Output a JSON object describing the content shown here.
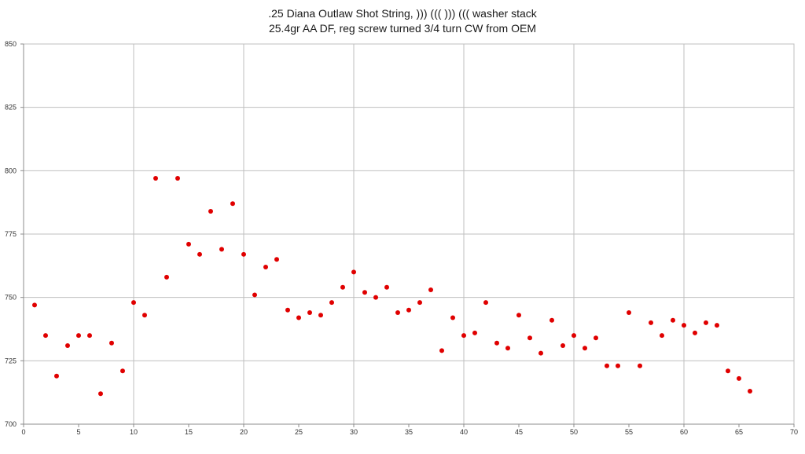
{
  "chart_data": {
    "type": "scatter",
    "title": ".25 Diana Outlaw Shot String, ))) ((( ))) ((( washer stack",
    "subtitle": "25.4gr AA DF, reg screw turned 3/4 turn CW from OEM",
    "xlabel": "",
    "ylabel": "",
    "xlim": [
      0,
      70
    ],
    "ylim": [
      700,
      850
    ],
    "x_ticks": [
      0,
      5,
      10,
      15,
      20,
      25,
      30,
      35,
      40,
      45,
      50,
      55,
      60,
      65,
      70
    ],
    "y_ticks": [
      700,
      725,
      750,
      775,
      800,
      825,
      850
    ],
    "grid": true,
    "legend": "none",
    "marker_color": "#e00000",
    "points": [
      [
        1,
        747
      ],
      [
        2,
        735
      ],
      [
        3,
        719
      ],
      [
        4,
        731
      ],
      [
        5,
        735
      ],
      [
        6,
        735
      ],
      [
        7,
        712
      ],
      [
        8,
        732
      ],
      [
        9,
        721
      ],
      [
        10,
        748
      ],
      [
        11,
        743
      ],
      [
        12,
        797
      ],
      [
        13,
        758
      ],
      [
        14,
        797
      ],
      [
        15,
        771
      ],
      [
        16,
        767
      ],
      [
        17,
        784
      ],
      [
        18,
        769
      ],
      [
        19,
        787
      ],
      [
        20,
        767
      ],
      [
        21,
        751
      ],
      [
        22,
        762
      ],
      [
        23,
        765
      ],
      [
        24,
        745
      ],
      [
        25,
        742
      ],
      [
        26,
        744
      ],
      [
        27,
        743
      ],
      [
        28,
        748
      ],
      [
        29,
        754
      ],
      [
        30,
        760
      ],
      [
        31,
        752
      ],
      [
        32,
        750
      ],
      [
        33,
        754
      ],
      [
        34,
        744
      ],
      [
        35,
        745
      ],
      [
        36,
        748
      ],
      [
        37,
        753
      ],
      [
        38,
        729
      ],
      [
        39,
        742
      ],
      [
        40,
        735
      ],
      [
        41,
        736
      ],
      [
        42,
        748
      ],
      [
        43,
        732
      ],
      [
        44,
        730
      ],
      [
        45,
        743
      ],
      [
        46,
        734
      ],
      [
        47,
        728
      ],
      [
        48,
        741
      ],
      [
        49,
        731
      ],
      [
        50,
        735
      ],
      [
        51,
        730
      ],
      [
        52,
        734
      ],
      [
        53,
        723
      ],
      [
        54,
        723
      ],
      [
        55,
        744
      ],
      [
        56,
        723
      ],
      [
        57,
        740
      ],
      [
        58,
        735
      ],
      [
        59,
        741
      ],
      [
        60,
        739
      ],
      [
        61,
        736
      ],
      [
        62,
        740
      ],
      [
        63,
        739
      ],
      [
        64,
        721
      ],
      [
        65,
        718
      ],
      [
        66,
        713
      ]
    ]
  }
}
